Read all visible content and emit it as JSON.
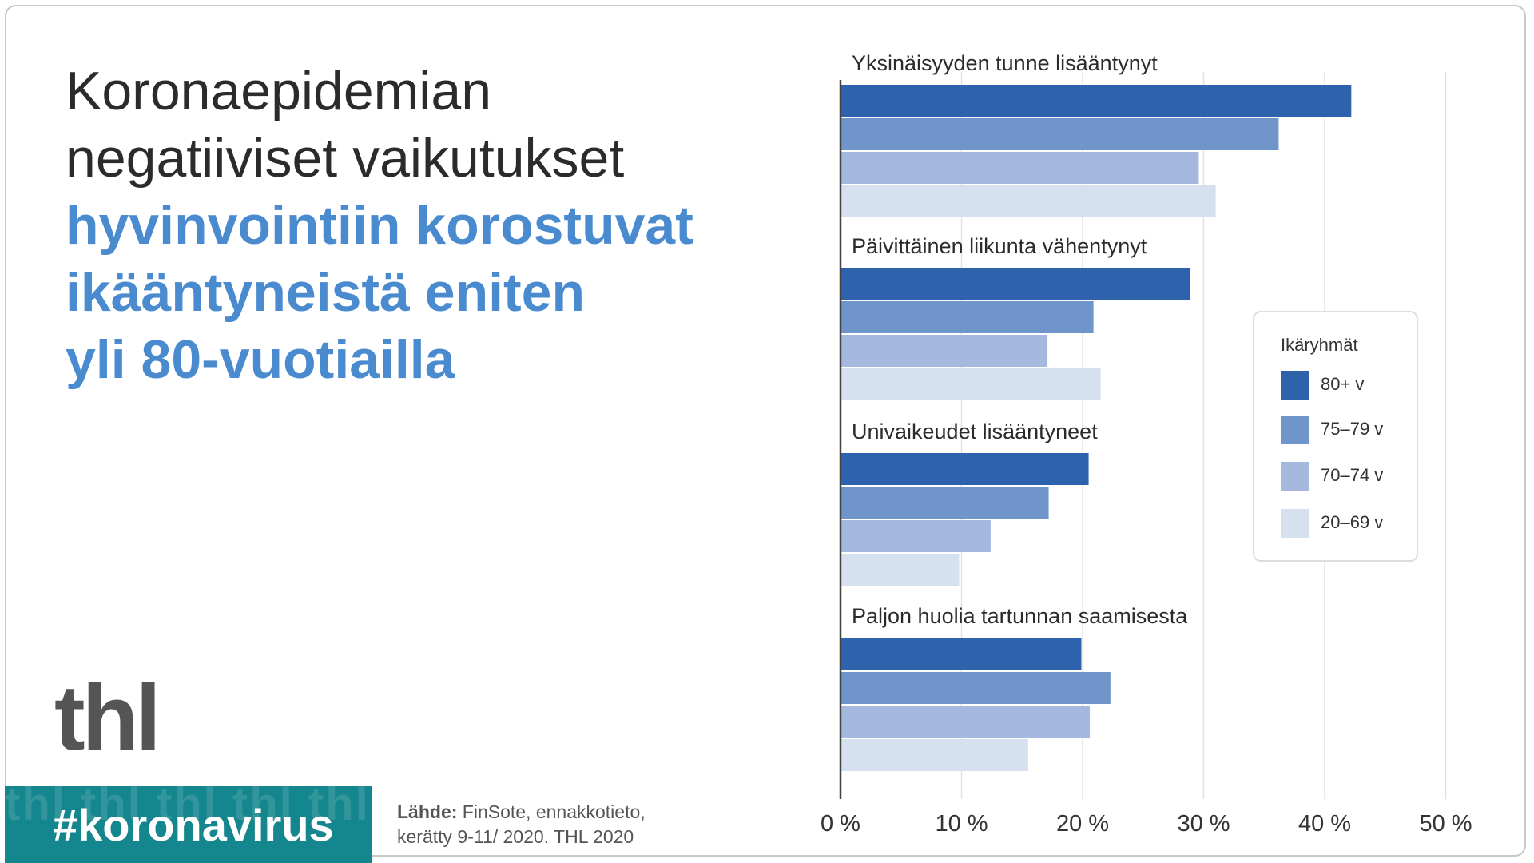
{
  "headline": {
    "line1": "Koronaepidemian",
    "line2": "negatiiviset vaikutukset",
    "line3": "hyvinvointiin korostuvat",
    "line4": "ikääntyneistä eniten",
    "line5": "yli 80-vuotiailla"
  },
  "logo": "thl",
  "hashtag": "#koronavirus",
  "hashtag_pattern": "thl thl thl thl thl",
  "source": {
    "label": "Lähde:",
    "line1_rest": " FinSote, ennakkotieto,",
    "line2": "kerätty 9-11/ 2020. THL 2020"
  },
  "legend": {
    "title": "Ikäryhmät"
  },
  "colors": {
    "series": [
      "#2f62ad",
      "#6f95cb",
      "#a4b9dd",
      "#d6e1f0"
    ],
    "headline_blue": "#4a8bd0",
    "headline_dark": "#2b2b2b",
    "logo": "#555555",
    "hashtag_bg": "#14868d"
  },
  "chart_data": {
    "type": "bar",
    "orientation": "horizontal",
    "categories": [
      "Yksinäisyyden tunne lisääntynyt",
      "Päivittäinen liikunta vähentynyt",
      "Univaikeudet lisääntyneet",
      "Paljon huolia tartunnan saamisesta"
    ],
    "series": [
      {
        "name": "80+ v",
        "values": [
          42.2,
          28.9,
          20.5,
          19.9
        ]
      },
      {
        "name": "75–79 v",
        "values": [
          36.2,
          20.9,
          17.2,
          22.3
        ]
      },
      {
        "name": "70–74 v",
        "values": [
          29.6,
          17.1,
          12.4,
          20.6
        ]
      },
      {
        "name": "20–69 v",
        "values": [
          31.0,
          21.5,
          9.8,
          15.5
        ]
      }
    ],
    "x_ticks": [
      "0 %",
      "10 %",
      "20 %",
      "30 %",
      "40 %",
      "50 %"
    ],
    "xlim": [
      0,
      50
    ],
    "grid": true,
    "legend_position": "right"
  }
}
